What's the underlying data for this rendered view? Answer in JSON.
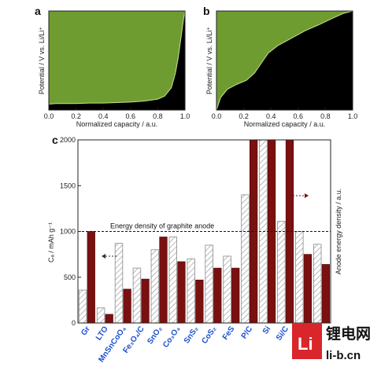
{
  "chart_data": [
    {
      "panel": "a",
      "type": "area",
      "x": [
        0,
        0.05,
        0.1,
        0.2,
        0.3,
        0.4,
        0.5,
        0.6,
        0.7,
        0.8,
        0.85,
        0.9,
        0.93,
        0.95,
        0.97,
        0.99,
        1.0
      ],
      "y": [
        0.12,
        0.13,
        0.13,
        0.13,
        0.14,
        0.14,
        0.15,
        0.16,
        0.18,
        0.22,
        0.28,
        0.45,
        0.75,
        1.05,
        1.45,
        1.85,
        2.0
      ],
      "ylabel": "Potential / V vs. Li/Li⁺",
      "xlabel": "Normalized capacity / a.u.",
      "xlim": [
        0,
        1
      ],
      "ylim": [
        0,
        2
      ],
      "xticks": [
        "0.0",
        "0.2",
        "0.4",
        "0.6",
        "0.8",
        "1.0"
      ],
      "colors": {
        "above": "#6f9c31",
        "below": "#000000"
      }
    },
    {
      "panel": "b",
      "type": "area",
      "x": [
        0,
        0.03,
        0.08,
        0.15,
        0.22,
        0.28,
        0.33,
        0.38,
        0.45,
        0.55,
        0.65,
        0.75,
        0.85,
        0.93,
        1.0
      ],
      "y": [
        0.0,
        0.25,
        0.42,
        0.52,
        0.6,
        0.75,
        0.95,
        1.15,
        1.3,
        1.45,
        1.6,
        1.72,
        1.85,
        1.95,
        2.0
      ],
      "ylabel": "Potential / V vs. Li/Li⁺",
      "xlabel": "Normalized capacity / a.u.",
      "xlim": [
        0,
        1
      ],
      "ylim": [
        0,
        2
      ],
      "xticks": [
        "0.0",
        "0.2",
        "0.4",
        "0.6",
        "0.8",
        "1.0"
      ],
      "colors": {
        "above": "#6f9c31",
        "below": "#000000"
      }
    },
    {
      "panel": "c",
      "type": "bar",
      "categories": [
        "Gr",
        "LTO",
        "MnSnCoO₄",
        "Fe₃O₄/C",
        "SnO₂",
        "Co₃O₄",
        "SnS₂",
        "CoS₂",
        "FeS",
        "P/C",
        "Si",
        "Si/C",
        "",
        ""
      ],
      "series": [
        {
          "values": [
            360,
            165,
            870,
            600,
            800,
            940,
            700,
            850,
            730,
            1400,
            2000,
            1110,
            1000,
            860
          ],
          "style": "hatched"
        },
        {
          "values": [
            1000,
            95,
            370,
            480,
            940,
            670,
            470,
            600,
            600,
            2000,
            2000,
            2000,
            750,
            640
          ],
          "style": "dark-red"
        }
      ],
      "ylabel": "Cₐ / mAh g⁻¹",
      "ylabel_right": "Anode energy density / a.u.",
      "ylim": [
        0,
        2000
      ],
      "yticks": [
        0,
        500,
        1000,
        1500,
        2000
      ],
      "reference_value": 1000,
      "annotation": "Energy density of graphite anode",
      "colors": {
        "hatched": "#9a9a9a",
        "dark": "#7a1010"
      }
    }
  ],
  "watermark": {
    "logo_letter": "Li",
    "text_cn": "锂电网",
    "url": "li-b.cn"
  }
}
